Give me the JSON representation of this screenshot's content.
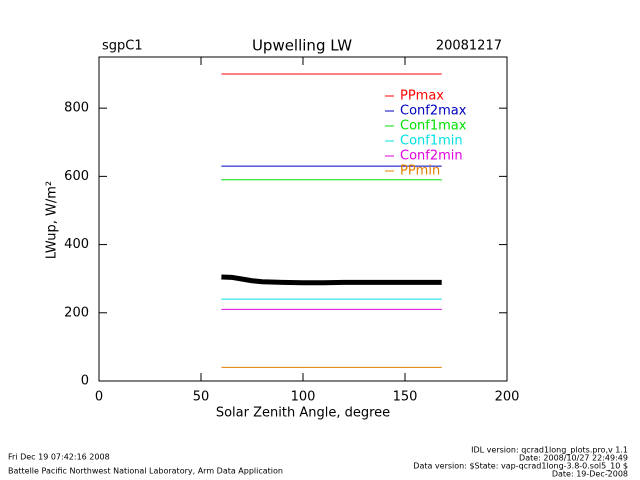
{
  "chart_data": {
    "type": "line",
    "title": "Upwelling LW",
    "site": "sgpC1",
    "date": "20081217",
    "xlabel": "Solar Zenith Angle, degree",
    "ylabel": "LWup, W/m²",
    "xlim": [
      0,
      200
    ],
    "xticks": [
      0,
      50,
      100,
      150,
      200
    ],
    "ylim": [
      0,
      950
    ],
    "yticks": [
      0,
      200,
      400,
      600,
      800
    ],
    "series": [
      {
        "name": "PPmax",
        "color": "#ff0000",
        "x": [
          60,
          168
        ],
        "values": [
          900,
          900
        ]
      },
      {
        "name": "Conf2max",
        "color": "#0000c0",
        "x": [
          60,
          168
        ],
        "values": [
          630,
          630
        ]
      },
      {
        "name": "Conf1max",
        "color": "#00e000",
        "x": [
          60,
          168
        ],
        "values": [
          590,
          590
        ]
      },
      {
        "name": "Conf1min",
        "color": "#00e0e0",
        "x": [
          60,
          168
        ],
        "values": [
          240,
          240
        ]
      },
      {
        "name": "Conf2min",
        "color": "#e000e0",
        "x": [
          60,
          168
        ],
        "values": [
          210,
          210
        ]
      },
      {
        "name": "PPmin",
        "color": "#e08000",
        "x": [
          60,
          168
        ],
        "values": [
          40,
          40
        ]
      },
      {
        "color": "#000000",
        "x": [
          60,
          65,
          70,
          75,
          80,
          90,
          100,
          110,
          120,
          140,
          168
        ],
        "values": [
          305,
          304,
          299,
          294,
          291,
          289,
          288,
          288,
          289,
          289,
          289
        ]
      }
    ],
    "footer": {
      "left": [
        "Fri Dec 19 07:42:16 2008",
        "Battelle Pacific Northwest National Laboratory, Arm Data Application"
      ],
      "right": [
        "IDL version: qcrad1long_plots.pro,v 1.1",
        "Date: 2008/10/27 22:49:49",
        "Data version: $State: vap-qcrad1long-3.8-0.sol5_10 $",
        "Date: 19-Dec-2008"
      ]
    }
  }
}
